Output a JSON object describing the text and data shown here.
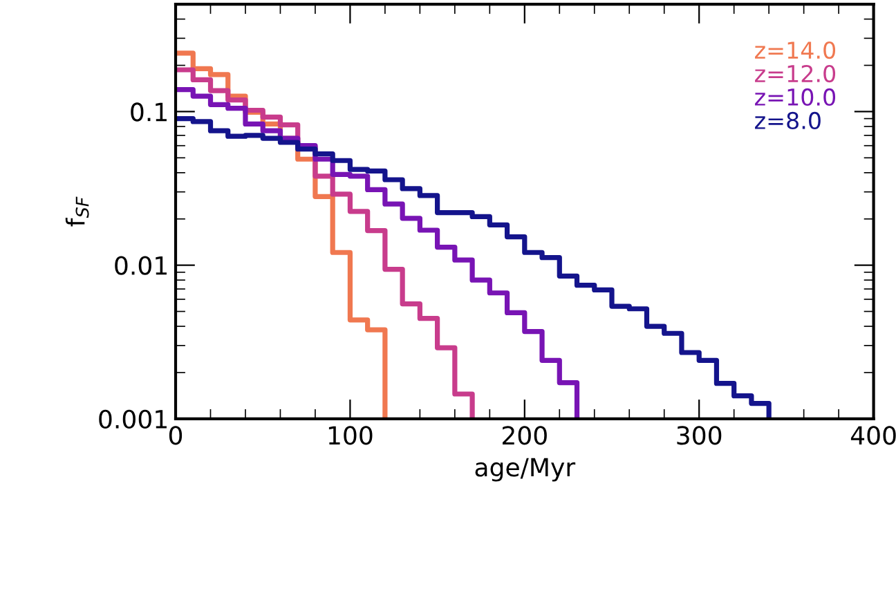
{
  "chart_data": {
    "type": "step",
    "xlabel": "age/Myr",
    "ylabel": "f$_{SF}$",
    "log": "y",
    "xlim": [
      0,
      400
    ],
    "xticks": [
      0,
      100,
      200,
      300,
      400
    ],
    "ylim": [
      0.001,
      0.5
    ],
    "yticks": [
      0.001,
      0.01,
      0.1
    ],
    "grid": false,
    "legend": "top right",
    "series": [
      {
        "name": "z=14.0",
        "color": "#f07850",
        "x": [
          0,
          10,
          20,
          30,
          40,
          50,
          60,
          70,
          80,
          90,
          100,
          110,
          120
        ],
        "values": [
          0.24,
          0.19,
          0.174,
          0.126,
          0.099,
          0.083,
          0.067,
          0.049,
          0.028,
          0.0121,
          0.0044,
          0.0038,
          0.001
        ]
      },
      {
        "name": "z=12.0",
        "color": "#c83c8c",
        "x": [
          0,
          10,
          20,
          30,
          40,
          50,
          60,
          70,
          80,
          90,
          100,
          110,
          120,
          130,
          140,
          150,
          160,
          170
        ],
        "values": [
          0.187,
          0.161,
          0.137,
          0.119,
          0.102,
          0.092,
          0.082,
          0.059,
          0.038,
          0.029,
          0.0224,
          0.0168,
          0.0094,
          0.0056,
          0.0045,
          0.0029,
          0.00145,
          0.001
        ]
      },
      {
        "name": "z=10.0",
        "color": "#7814b4",
        "x": [
          0,
          10,
          20,
          30,
          40,
          50,
          60,
          70,
          80,
          90,
          100,
          110,
          120,
          130,
          140,
          150,
          160,
          170,
          180,
          190,
          200,
          210,
          220,
          230
        ],
        "values": [
          0.139,
          0.126,
          0.111,
          0.105,
          0.083,
          0.075,
          0.067,
          0.06,
          0.049,
          0.039,
          0.038,
          0.031,
          0.025,
          0.0202,
          0.0169,
          0.0131,
          0.0108,
          0.008,
          0.0066,
          0.0049,
          0.0037,
          0.0024,
          0.00172,
          0.001
        ]
      },
      {
        "name": "z=8.0",
        "color": "#14148c",
        "x": [
          0,
          10,
          20,
          30,
          40,
          50,
          60,
          70,
          80,
          90,
          100,
          110,
          120,
          130,
          140,
          150,
          160,
          170,
          180,
          190,
          200,
          210,
          220,
          230,
          240,
          250,
          260,
          270,
          280,
          290,
          300,
          310,
          320,
          330,
          340
        ],
        "values": [
          0.09,
          0.086,
          0.075,
          0.069,
          0.07,
          0.067,
          0.063,
          0.057,
          0.053,
          0.048,
          0.042,
          0.041,
          0.036,
          0.0315,
          0.0284,
          0.022,
          0.022,
          0.0207,
          0.0183,
          0.0153,
          0.0121,
          0.0112,
          0.0085,
          0.0074,
          0.0069,
          0.0054,
          0.0052,
          0.004,
          0.0036,
          0.0027,
          0.0024,
          0.0017,
          0.00141,
          0.00126,
          0.001
        ]
      }
    ]
  }
}
